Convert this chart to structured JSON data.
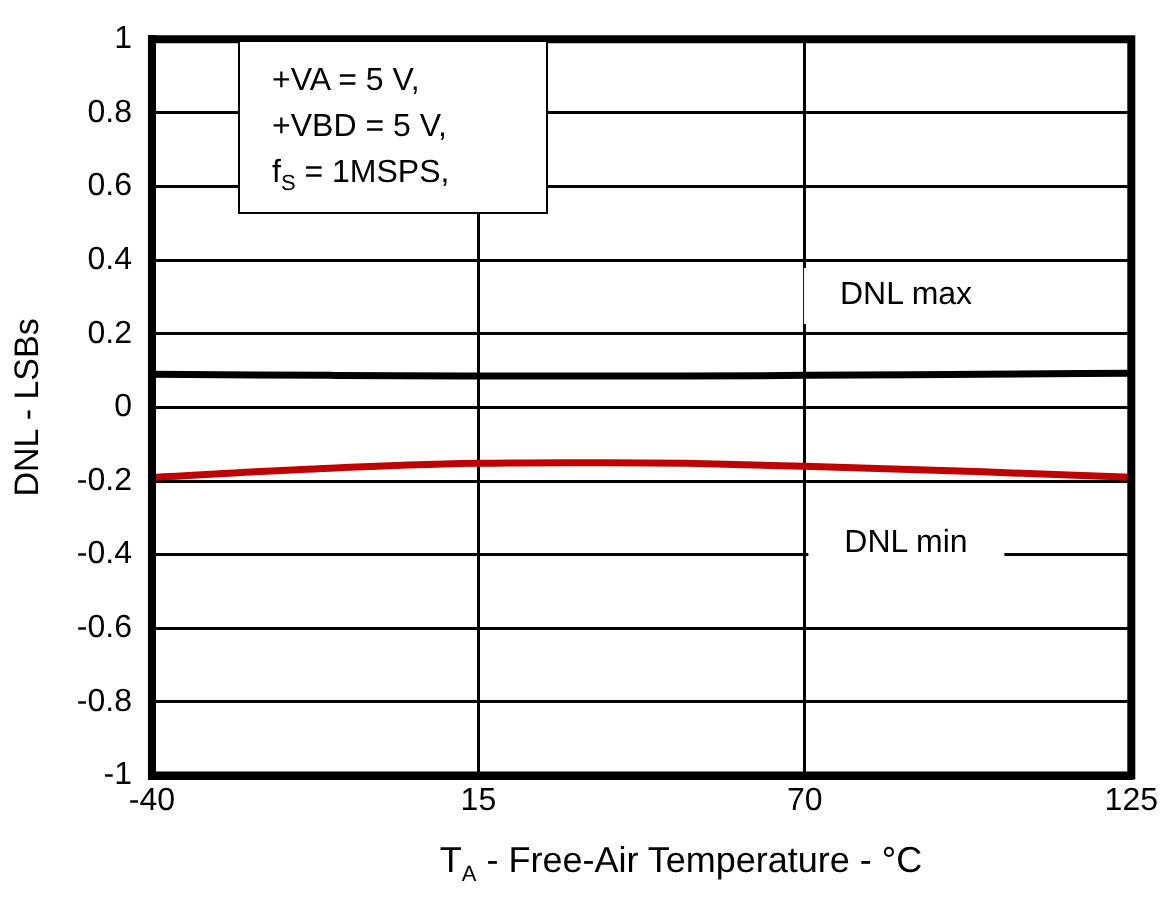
{
  "chart_data": {
    "type": "line",
    "xlabel": "T$_{A}$ - Free-Air Temperature - °C",
    "ylabel": "DNL - LSBs",
    "x": [
      -40,
      -10,
      15,
      30,
      50,
      70,
      100,
      125
    ],
    "series": [
      {
        "color": "#000000",
        "values": [
          0.09,
          0.087,
          0.085,
          0.085,
          0.085,
          0.087,
          0.09,
          0.093
        ]
      },
      {
        "color": "#c00000",
        "values": [
          -0.19,
          -0.165,
          -0.152,
          -0.15,
          -0.152,
          -0.16,
          -0.175,
          -0.19
        ]
      }
    ],
    "xlim": [
      -40,
      125
    ],
    "xticks": [
      -40,
      15,
      70,
      125
    ],
    "ylim": [
      -1,
      1
    ],
    "yticks": [
      -1,
      -0.8,
      -0.6,
      -0.4,
      -0.2,
      0,
      0.2,
      0.4,
      0.6,
      0.8,
      1
    ],
    "grid": true,
    "legend": false,
    "marker": "none",
    "line_style": "solid",
    "annotations": [
      "+VA = 5 V,",
      "+VBD = 5 V,",
      "f$_{S}$ = 1MSPS,",
      "DNL max",
      "DNL min"
    ]
  }
}
